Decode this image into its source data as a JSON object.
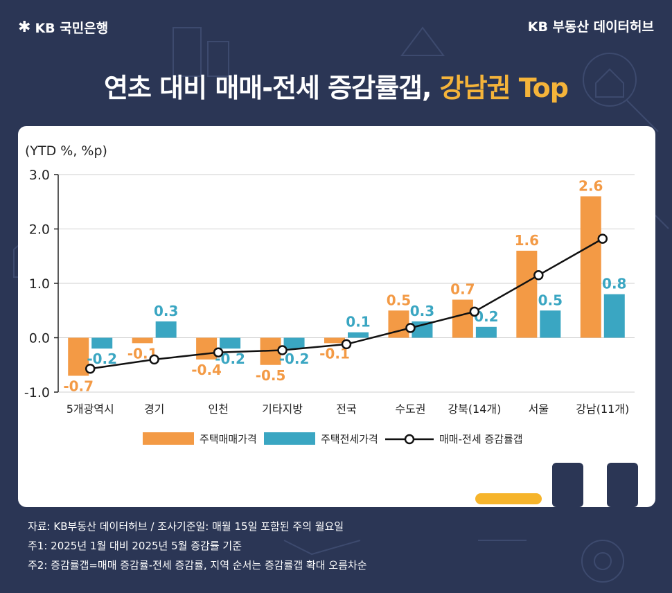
{
  "header": {
    "logo_text": "KB 국민은행",
    "hub_text": "KB 부동산  데이터허브",
    "title_main": "연초 대비 매매-전세 증감률갭, ",
    "title_highlight": "강남권 Top"
  },
  "colors": {
    "background": "#2b3655",
    "sale": "#f39a45",
    "jeonse": "#3aa6c2",
    "gap_line": "#111111",
    "highlight": "#f5b43a"
  },
  "chart_data": {
    "type": "bar",
    "unit_label": "(YTD %, %p)",
    "categories": [
      "5개광역시",
      "경기",
      "인천",
      "기타지방",
      "전국",
      "수도권",
      "강북(14개)",
      "서울",
      "강남(11개)"
    ],
    "ylim": [
      -1.0,
      3.0
    ],
    "yticks": [
      "3.0",
      "2.0",
      "1.0",
      "0.0",
      "-1.0"
    ],
    "ytick_values": [
      3.0,
      2.0,
      1.0,
      0.0,
      -1.0
    ],
    "series": [
      {
        "name": "주택매매가격",
        "kind": "bar",
        "values": [
          -0.7,
          -0.1,
          -0.4,
          -0.5,
          -0.1,
          0.5,
          0.7,
          1.6,
          2.6
        ],
        "labels": [
          "-0.7",
          "-0.1",
          "-0.4",
          "-0.5",
          "-0.1",
          "0.5",
          "0.7",
          "1.6",
          "2.6"
        ]
      },
      {
        "name": "주택전세가격",
        "kind": "bar",
        "values": [
          -0.2,
          0.3,
          -0.2,
          -0.2,
          0.1,
          0.3,
          0.2,
          0.5,
          0.8
        ],
        "labels": [
          "-0.2",
          "0.3",
          "-0.2",
          "-0.2",
          "0.1",
          "0.3",
          "0.2",
          "0.5",
          "0.8"
        ]
      },
      {
        "name": "매매-전세 증감률갭",
        "kind": "line",
        "values": [
          -0.57,
          -0.4,
          -0.27,
          -0.23,
          -0.12,
          0.18,
          0.48,
          1.15,
          1.82
        ]
      }
    ],
    "legend_position": "bottom",
    "grid": true
  },
  "notes": [
    "자료: KB부동산 데이터허브 / 조사기준일: 매월 15일 포함된 주의 월요일",
    "주1: 2025년 1월 대비 2025년 5월 증감률 기준",
    "주2: 증감률갭=매매 증감률-전세 증감률, 지역 순서는 증감률갭 확대 오름차순"
  ]
}
